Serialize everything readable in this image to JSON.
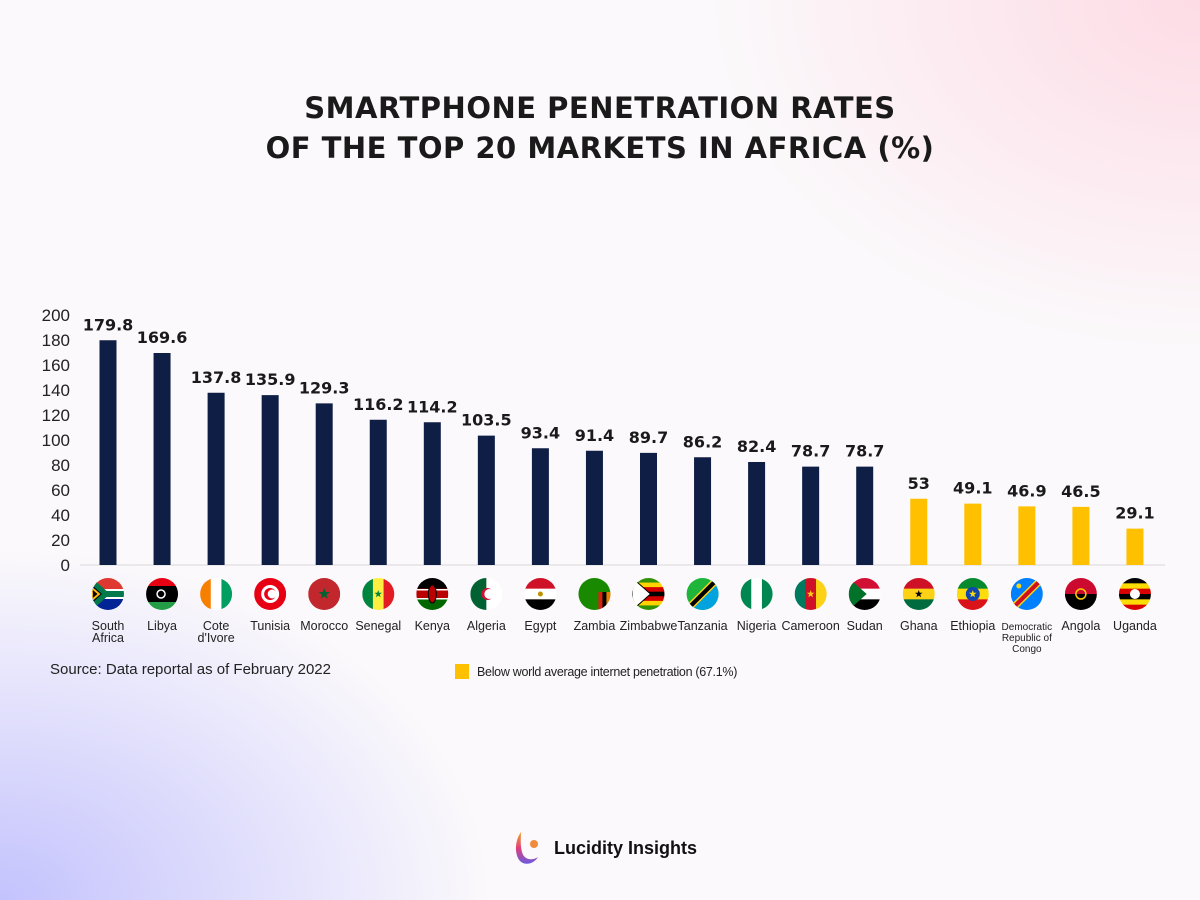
{
  "title_lines": [
    "SMARTPHONE PENETRATION RATES",
    "OF THE TOP 20 MARKETS IN AFRICA (%)"
  ],
  "source": "Source: Data reportal as of February 2022",
  "legend": {
    "label": "Below world average internet penetration (67.1%)",
    "color": "#FFC000"
  },
  "brand": "Lucidity Insights",
  "chart_data": {
    "type": "bar",
    "title": "SMARTPHONE PENETRATION RATES OF THE TOP 20 MARKETS IN AFRICA (%)",
    "categories": [
      "South Africa",
      "Libya",
      "Cote d'Ivore",
      "Tunisia",
      "Morocco",
      "Senegal",
      "Kenya",
      "Algeria",
      "Egypt",
      "Zambia",
      "Zimbabwe",
      "Tanzania",
      "Nigeria",
      "Cameroon",
      "Sudan",
      "Ghana",
      "Ethiopia",
      "Democratic Republic of Congo",
      "Angola",
      "Uganda"
    ],
    "category_lines": [
      [
        "South",
        "Africa"
      ],
      [
        "Libya"
      ],
      [
        "Cote",
        "d'Ivore"
      ],
      [
        "Tunisia"
      ],
      [
        "Morocco"
      ],
      [
        "Senegal"
      ],
      [
        "Kenya"
      ],
      [
        "Algeria"
      ],
      [
        "Egypt"
      ],
      [
        "Zambia"
      ],
      [
        "Zimbabwe"
      ],
      [
        "Tanzania"
      ],
      [
        "Nigeria"
      ],
      [
        "Cameroon"
      ],
      [
        "Sudan"
      ],
      [
        "Ghana"
      ],
      [
        "Ethiopia"
      ],
      [
        "Democratic",
        "Republic of",
        "Congo"
      ],
      [
        "Angola"
      ],
      [
        "Uganda"
      ]
    ],
    "values": [
      179.8,
      169.6,
      137.8,
      135.9,
      129.3,
      116.2,
      114.2,
      103.5,
      93.4,
      91.4,
      89.7,
      86.2,
      82.4,
      78.7,
      78.7,
      53,
      49.1,
      46.9,
      46.5,
      29.1
    ],
    "value_labels": [
      "179.8",
      "169.6",
      "137.8",
      "135.9",
      "129.3",
      "116.2",
      "114.2",
      "103.5",
      "93.4",
      "91.4",
      "89.7",
      "86.2",
      "82.4",
      "78.7",
      "78.7",
      "53",
      "49.1",
      "46.9",
      "46.5",
      "29.1"
    ],
    "below_average": [
      false,
      false,
      false,
      false,
      false,
      false,
      false,
      false,
      false,
      false,
      false,
      false,
      false,
      false,
      false,
      true,
      true,
      true,
      true,
      true
    ],
    "colors": {
      "above": "#0F1E45",
      "below": "#FFC000"
    },
    "ylim": [
      0,
      200
    ],
    "yticks": [
      0,
      20,
      40,
      60,
      80,
      100,
      120,
      140,
      160,
      180,
      200
    ],
    "grid": false,
    "legend_position": "bottom"
  }
}
